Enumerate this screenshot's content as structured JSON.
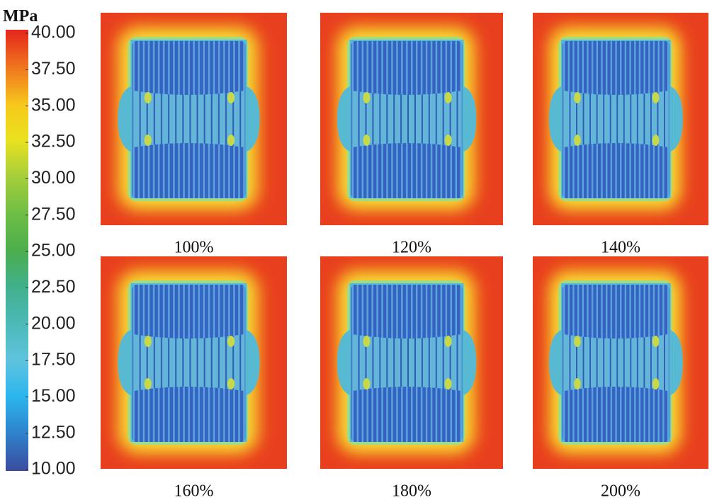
{
  "colorbar": {
    "unit": "MPa",
    "ticks": [
      "40.00",
      "37.50",
      "35.00",
      "32.50",
      "30.00",
      "27.50",
      "25.00",
      "22.50",
      "20.00",
      "17.50",
      "15.00",
      "12.50",
      "10.00"
    ]
  },
  "panels": [
    {
      "label": "100%"
    },
    {
      "label": "120%"
    },
    {
      "label": "140%"
    },
    {
      "label": "160%"
    },
    {
      "label": "180%"
    },
    {
      "label": "200%"
    }
  ]
}
